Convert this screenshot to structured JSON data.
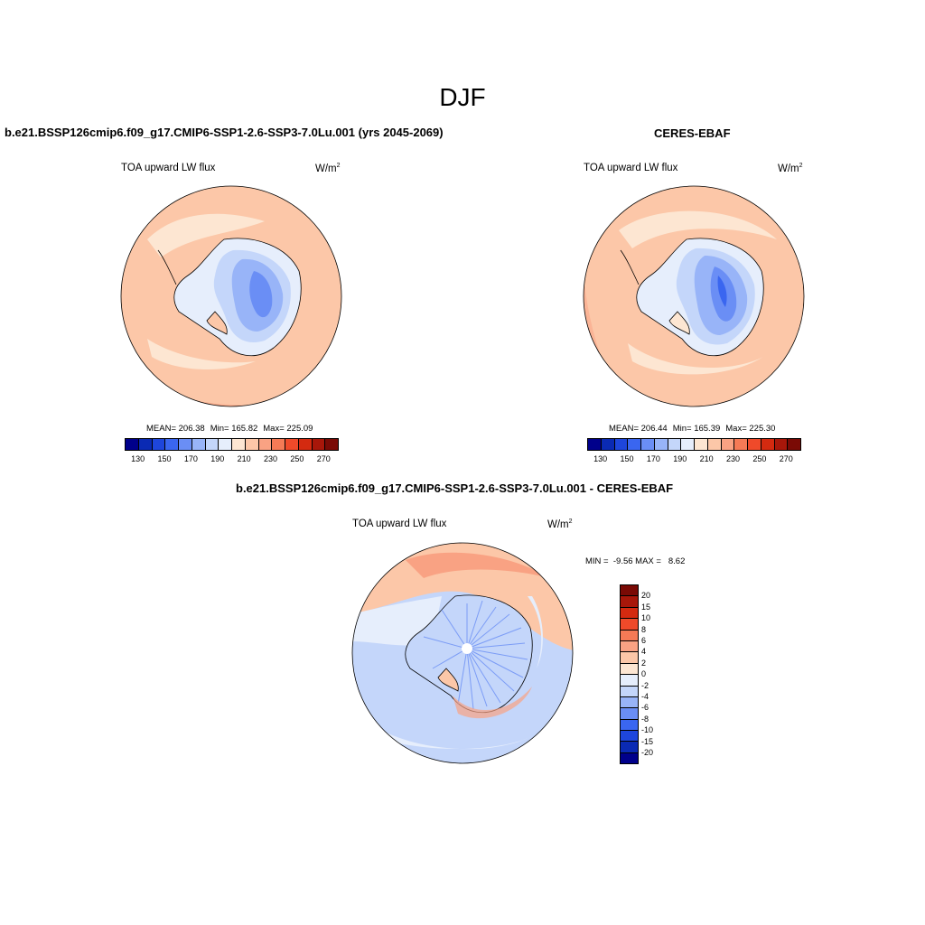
{
  "main_title": "DJF",
  "panels": [
    {
      "title": "b.e21.BSSP126cmip6.f09_g17.CMIP6-SSP1-2.6-SSP3-7.0Lu.001 (yrs 2045-2069)",
      "variable": "TOA upward LW flux",
      "units": "W/m",
      "units_sup": "2",
      "stats": {
        "mean": "MEAN= 206.38",
        "min": "Min= 165.82",
        "max": "Max= 225.09"
      }
    },
    {
      "title": "CERES-EBAF",
      "variable": "TOA upward LW flux",
      "units": "W/m",
      "units_sup": "2",
      "stats": {
        "mean": "MEAN= 206.44",
        "min": "Min= 165.39",
        "max": "Max= 225.30"
      }
    },
    {
      "title": "b.e21.BSSP126cmip6.f09_g17.CMIP6-SSP1-2.6-SSP3-7.0Lu.001 - CERES-EBAF",
      "variable": "TOA upward LW flux",
      "units": "W/m",
      "units_sup": "2",
      "minmax": "MIN =  -9.56 MAX =   8.62"
    }
  ],
  "abs_colorbar": {
    "colors": [
      "#00008b",
      "#0a2ab4",
      "#1e46dc",
      "#3a66f0",
      "#6a8ef5",
      "#98b4f8",
      "#c4d6fa",
      "#e6eefc",
      "#fde6d2",
      "#fcc7a8",
      "#f9a283",
      "#f57a56",
      "#ef4a2a",
      "#d42a10",
      "#a8170a",
      "#7a0a05"
    ],
    "ticks": [
      "130",
      "150",
      "170",
      "190",
      "210",
      "230",
      "250",
      "270"
    ]
  },
  "diff_colorbar": {
    "colors": [
      "#7a0a05",
      "#a8170a",
      "#d42a10",
      "#ef4a2a",
      "#f57a56",
      "#f9a283",
      "#fcc7a8",
      "#fde6d2",
      "#e6eefc",
      "#c4d6fa",
      "#98b4f8",
      "#6a8ef5",
      "#3a66f0",
      "#1e46dc",
      "#0a2ab4",
      "#00008b"
    ],
    "ticks": [
      "20",
      "15",
      "10",
      "8",
      "6",
      "4",
      "2",
      "0",
      "-2",
      "-4",
      "-6",
      "-8",
      "-10",
      "-15",
      "-20"
    ]
  },
  "map_colors": {
    "ocean_warm": "#fcc7a8",
    "ocean_light": "#fde6d2",
    "ocean_deep": "#f9a283",
    "ice_light": "#e6eefc",
    "ice_mid": "#c4d6fa",
    "ice_blue": "#98b4f8",
    "ice_core": "#6a8ef5",
    "ice_darkest": "#3a66f0",
    "diff_pos": "#fcc7a8",
    "diff_pos_strong": "#f9a283",
    "diff_neg": "#c4d6fa",
    "diff_neg_light": "#e6eefc"
  }
}
